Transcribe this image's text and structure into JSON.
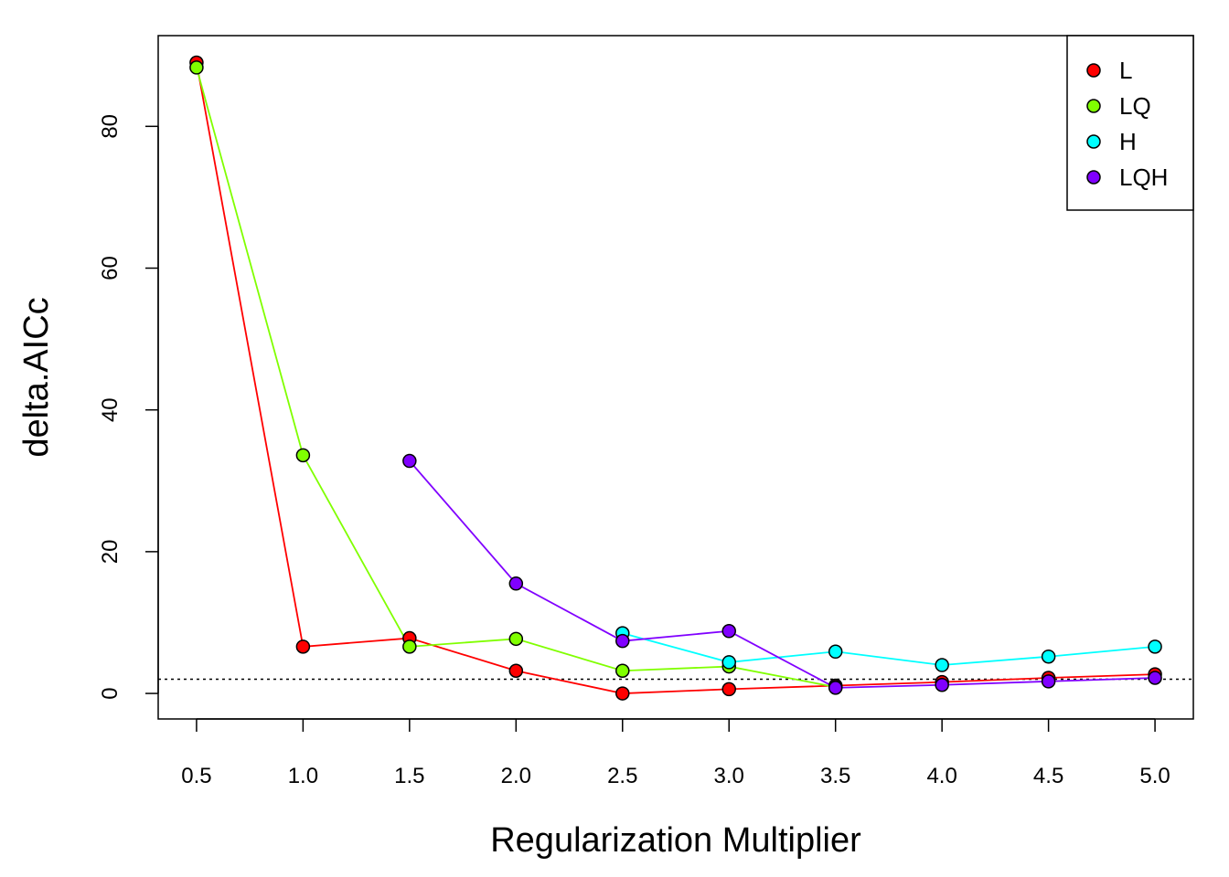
{
  "chart_data": {
    "type": "line",
    "title": "",
    "xlabel": "Regularization Multiplier",
    "ylabel": "delta.AICc",
    "x": [
      0.5,
      1.0,
      1.5,
      2.0,
      2.5,
      3.0,
      3.5,
      4.0,
      4.5,
      5.0
    ],
    "x_tick_labels": [
      "0.5",
      "1.0",
      "1.5",
      "2.0",
      "2.5",
      "3.0",
      "3.5",
      "4.0",
      "4.5",
      "5.0"
    ],
    "y_ticks": [
      0,
      20,
      40,
      60,
      80
    ],
    "y_tick_labels": [
      "0",
      "20",
      "40",
      "60",
      "80"
    ],
    "xlim": [
      0.32,
      5.18
    ],
    "ylim": [
      -3.6,
      92.8
    ],
    "reference_line": {
      "y": 2,
      "style": "dotted"
    },
    "legend_position": "top-right",
    "series": [
      {
        "name": "L",
        "color": "#ff0000",
        "values": [
          89.0,
          6.6,
          7.8,
          3.2,
          0.0,
          0.6,
          1.1,
          1.6,
          2.2,
          2.7
        ]
      },
      {
        "name": "LQ",
        "color": "#80ff00",
        "values": [
          88.3,
          33.6,
          6.6,
          7.7,
          3.2,
          3.8,
          0.9,
          null,
          null,
          null
        ]
      },
      {
        "name": "H",
        "color": "#00ffff",
        "values": [
          null,
          null,
          null,
          null,
          8.5,
          4.4,
          5.9,
          4.0,
          5.2,
          6.6
        ]
      },
      {
        "name": "LQH",
        "color": "#8000ff",
        "values": [
          null,
          null,
          32.8,
          15.5,
          7.4,
          8.8,
          0.8,
          1.2,
          1.7,
          2.2
        ]
      }
    ]
  }
}
